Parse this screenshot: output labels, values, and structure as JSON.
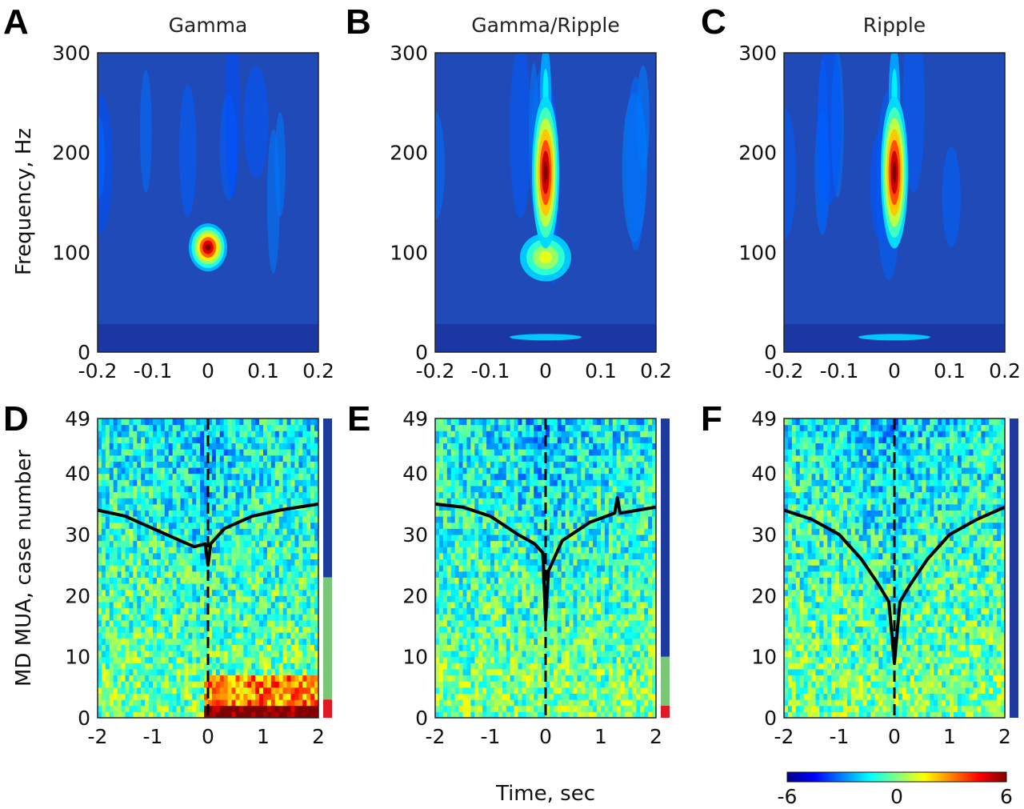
{
  "colors": {
    "jet_low": "#1a2a9c",
    "jet_mid": "#7ec8a0",
    "jet_high": "#8b0000",
    "group_blue": "#1e3a9e",
    "group_green": "#78c878",
    "group_red": "#e01a24",
    "trace": "#000000"
  },
  "figure": {
    "ylabel_top": "Frequency, Hz",
    "ylabel_bottom": "MD MUA, case number",
    "xlabel_bottom": "Time, sec",
    "colorbar": {
      "ticks": [
        "-6",
        "0",
        "6"
      ],
      "min": -6,
      "max": 6
    }
  },
  "chart_data": [
    {
      "type": "heatmap",
      "label": "A",
      "title": "Gamma",
      "xticks": [
        "-0.2",
        "-0.1",
        "0",
        "0.1",
        "0.2"
      ],
      "xlim": [
        -0.2,
        0.2
      ],
      "yticks": [
        "0",
        "100",
        "200",
        "300"
      ],
      "ylim": [
        0,
        300
      ],
      "peak": {
        "time": 0,
        "frequency_hz": 105
      }
    },
    {
      "type": "heatmap",
      "label": "B",
      "title": "Gamma/Ripple",
      "xticks": [
        "-0.2",
        "-0.1",
        "0",
        "0.1",
        "0.2"
      ],
      "xlim": [
        -0.2,
        0.2
      ],
      "yticks": [
        "0",
        "100",
        "200",
        "300"
      ],
      "ylim": [
        0,
        300
      ],
      "peak": {
        "time": 0,
        "frequency_hz": 180
      },
      "secondary_peak": {
        "time": 0,
        "frequency_hz": 95
      }
    },
    {
      "type": "heatmap",
      "label": "C",
      "title": "Ripple",
      "xticks": [
        "-0.2",
        "-0.1",
        "0",
        "0.1",
        "0.2"
      ],
      "xlim": [
        -0.2,
        0.2
      ],
      "yticks": [
        "0",
        "100",
        "200",
        "300"
      ],
      "ylim": [
        0,
        300
      ],
      "peak": {
        "time": 0,
        "frequency_hz": 180
      }
    },
    {
      "type": "heatmap",
      "label": "D",
      "xticks": [
        "-2",
        "-1",
        "0",
        "1",
        "2"
      ],
      "xlim": [
        -2,
        2
      ],
      "yticks": [
        "0",
        "10",
        "20",
        "30",
        "40",
        "49"
      ],
      "ylim": [
        0,
        49
      ],
      "groups": [
        {
          "color": "group_red",
          "from": 0,
          "to": 3
        },
        {
          "color": "group_green",
          "from": 3,
          "to": 23
        },
        {
          "color": "group_blue",
          "from": 23,
          "to": 49
        }
      ],
      "trace": {
        "x": [
          -2,
          -1.5,
          -1,
          -0.5,
          -0.25,
          -0.05,
          0,
          0.05,
          0.3,
          0.8,
          1.3,
          2
        ],
        "y": [
          34,
          33,
          31,
          29,
          28,
          28.5,
          25,
          28.5,
          31,
          33,
          34,
          35
        ]
      }
    },
    {
      "type": "heatmap",
      "label": "E",
      "xticks": [
        "-2",
        "-1",
        "0",
        "1",
        "2"
      ],
      "xlim": [
        -2,
        2
      ],
      "yticks": [
        "0",
        "10",
        "20",
        "30",
        "40",
        "49"
      ],
      "ylim": [
        0,
        49
      ],
      "groups": [
        {
          "color": "group_red",
          "from": 0,
          "to": 2
        },
        {
          "color": "group_green",
          "from": 2,
          "to": 10
        },
        {
          "color": "group_blue",
          "from": 10,
          "to": 49
        }
      ],
      "trace": {
        "x": [
          -2,
          -1.5,
          -1,
          -0.5,
          -0.2,
          -0.05,
          0,
          0.05,
          0.3,
          0.8,
          1.25,
          1.3,
          1.35,
          2
        ],
        "y": [
          35,
          34.5,
          33,
          30,
          28.5,
          27,
          16,
          24,
          29,
          32,
          33.5,
          36,
          33.5,
          34.5
        ]
      }
    },
    {
      "type": "heatmap",
      "label": "F",
      "xticks": [
        "-2",
        "-1",
        "0",
        "1",
        "2"
      ],
      "xlim": [
        -2,
        2
      ],
      "yticks": [
        "0",
        "10",
        "20",
        "30",
        "40",
        "49"
      ],
      "ylim": [
        0,
        49
      ],
      "groups": [
        {
          "color": "group_blue",
          "from": 0,
          "to": 49
        }
      ],
      "trace": {
        "x": [
          -2,
          -1.5,
          -1,
          -0.6,
          -0.3,
          -0.1,
          0,
          0.1,
          0.3,
          0.6,
          1,
          1.5,
          2
        ],
        "y": [
          34,
          32.5,
          30,
          26,
          22,
          19,
          9,
          19,
          22,
          26,
          30,
          32.5,
          34.5
        ]
      }
    }
  ]
}
